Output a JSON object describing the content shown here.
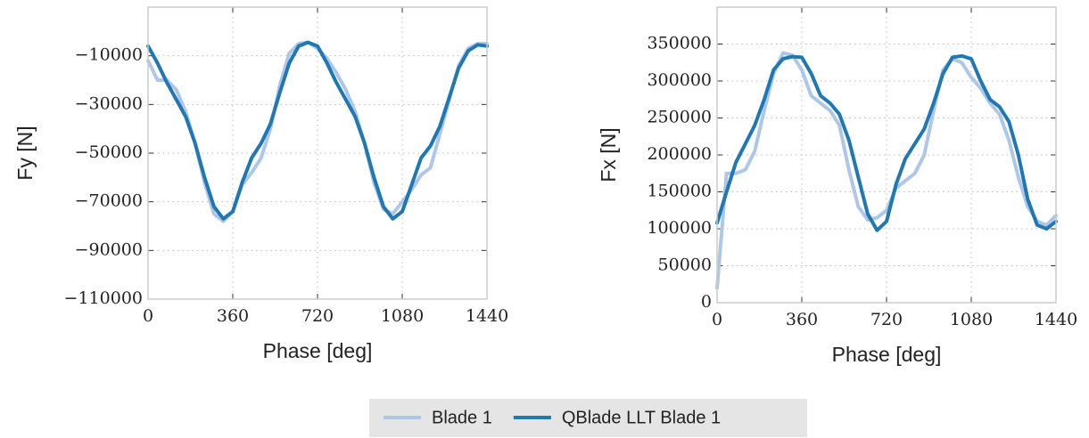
{
  "chart_data": [
    {
      "type": "line",
      "xlabel": "Phase [deg]",
      "ylabel": "Fy [N]",
      "x": [
        0,
        40,
        80,
        120,
        160,
        200,
        240,
        280,
        320,
        360,
        400,
        440,
        480,
        520,
        560,
        600,
        640,
        680,
        720,
        760,
        800,
        840,
        880,
        920,
        960,
        1000,
        1040,
        1080,
        1120,
        1160,
        1200,
        1240,
        1280,
        1320,
        1360,
        1400,
        1440
      ],
      "series": [
        {
          "name": "Blade 1",
          "color": "#aec7e8",
          "values": [
            -12000,
            -20000,
            -20000,
            -24000,
            -33000,
            -46000,
            -62000,
            -75000,
            -78000,
            -74000,
            -63000,
            -58000,
            -52000,
            -40000,
            -22000,
            -9000,
            -5000,
            -4500,
            -7000,
            -11000,
            -17000,
            -24000,
            -33000,
            -46000,
            -62000,
            -73000,
            -75000,
            -70000,
            -65000,
            -59000,
            -56000,
            -42000,
            -28000,
            -14000,
            -7000,
            -5000,
            -5000
          ]
        },
        {
          "name": "QBlade LLT Blade 1",
          "color": "#1f77b4",
          "values": [
            -6000,
            -13000,
            -21000,
            -28000,
            -35000,
            -46000,
            -60000,
            -72000,
            -77000,
            -74000,
            -62000,
            -52000,
            -46000,
            -38000,
            -25000,
            -13000,
            -6000,
            -4500,
            -6000,
            -13000,
            -21000,
            -28000,
            -35000,
            -46000,
            -60000,
            -72000,
            -77000,
            -74000,
            -63000,
            -52000,
            -47000,
            -39000,
            -27000,
            -15000,
            -8000,
            -5500,
            -6000
          ]
        }
      ],
      "xlim": [
        0,
        1440
      ],
      "xticks": [
        0,
        360,
        720,
        1080,
        1440
      ],
      "ylim": [
        -110000,
        10000
      ],
      "yticks": [
        {
          "value": -110000,
          "label": "−110000"
        },
        {
          "value": -90000,
          "label": "−90000"
        },
        {
          "value": -70000,
          "label": "−70000"
        },
        {
          "value": -50000,
          "label": "−50000"
        },
        {
          "value": -30000,
          "label": "−30000"
        },
        {
          "value": -10000,
          "label": "−10000"
        }
      ],
      "grid": true,
      "legend": "below"
    },
    {
      "type": "line",
      "xlabel": "Phase [deg]",
      "ylabel": "Fx [N]",
      "x": [
        0,
        40,
        80,
        120,
        160,
        200,
        240,
        280,
        320,
        360,
        400,
        440,
        480,
        520,
        560,
        600,
        640,
        680,
        720,
        760,
        800,
        840,
        880,
        920,
        960,
        1000,
        1040,
        1080,
        1120,
        1160,
        1200,
        1240,
        1280,
        1320,
        1360,
        1400,
        1440
      ],
      "series": [
        {
          "name": "Blade 1",
          "color": "#aec7e8",
          "values": [
            20000,
            175000,
            175000,
            180000,
            205000,
            260000,
            310000,
            338000,
            335000,
            315000,
            280000,
            270000,
            260000,
            240000,
            180000,
            130000,
            112000,
            115000,
            125000,
            155000,
            165000,
            175000,
            200000,
            260000,
            315000,
            330000,
            325000,
            305000,
            290000,
            270000,
            255000,
            220000,
            170000,
            130000,
            110000,
            105000,
            118000
          ]
        },
        {
          "name": "QBlade LLT Blade 1",
          "color": "#1f77b4",
          "values": [
            108000,
            150000,
            190000,
            215000,
            240000,
            275000,
            315000,
            330000,
            333000,
            332000,
            310000,
            280000,
            270000,
            255000,
            220000,
            170000,
            120000,
            98000,
            110000,
            160000,
            195000,
            215000,
            235000,
            270000,
            310000,
            332000,
            334000,
            330000,
            300000,
            275000,
            265000,
            245000,
            200000,
            140000,
            105000,
            100000,
            110000
          ]
        }
      ],
      "xlim": [
        0,
        1440
      ],
      "xticks": [
        0,
        360,
        720,
        1080,
        1440
      ],
      "ylim": [
        0,
        400000
      ],
      "yticks": [
        0,
        50000,
        100000,
        150000,
        200000,
        250000,
        300000,
        350000
      ],
      "grid": true
    }
  ]
}
